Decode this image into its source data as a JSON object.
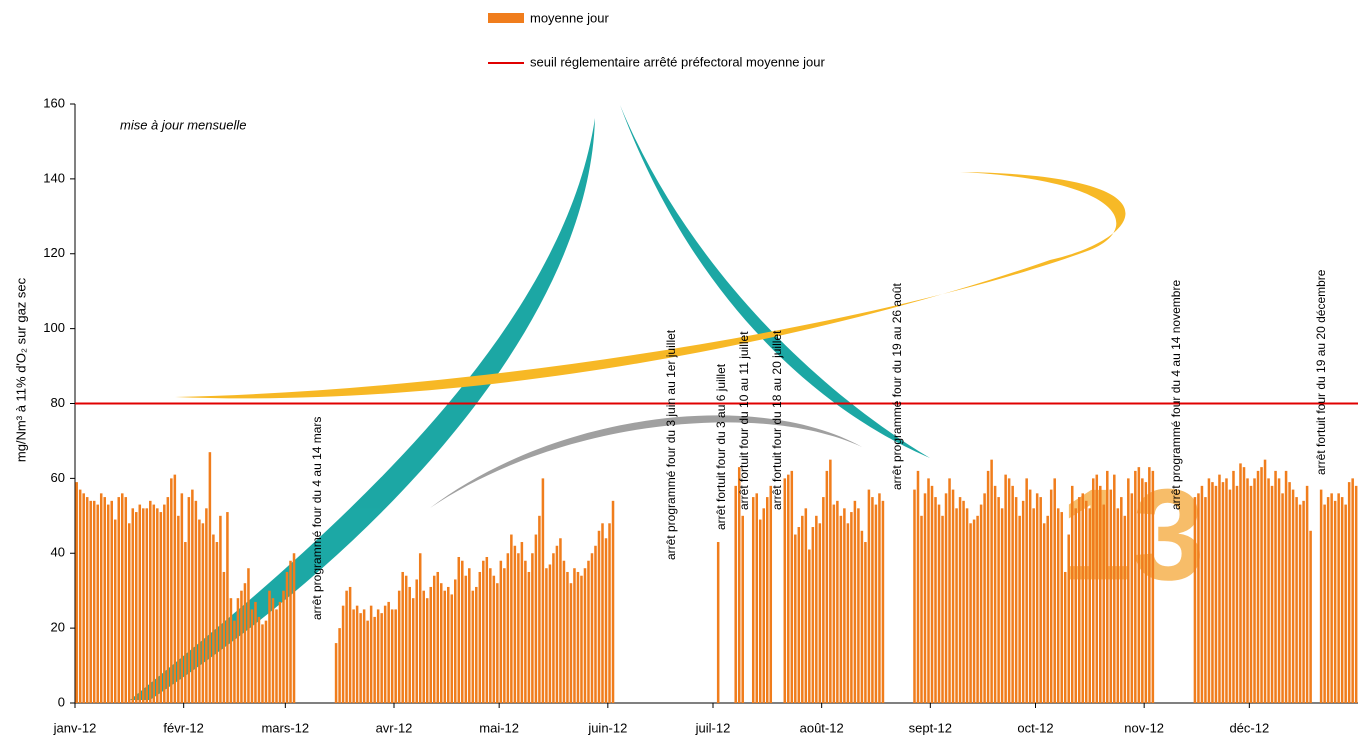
{
  "chart_data": {
    "type": "bar",
    "y_label": "mg/Nm³ à 11% d'O₂ sur gaz sec",
    "note": "mise à jour mensuelle",
    "series": [
      {
        "name": "moyenne jour",
        "color": "#f07d1c",
        "values": [
          59,
          57,
          56,
          55,
          54,
          54,
          53,
          56,
          55,
          53,
          54,
          49,
          55,
          56,
          55,
          48,
          52,
          51,
          53,
          52,
          52,
          54,
          53,
          52,
          51,
          53,
          55,
          60,
          61,
          50,
          56,
          43,
          55,
          57,
          54,
          49,
          48,
          52,
          67,
          45,
          43,
          50,
          35,
          51,
          28,
          22,
          28,
          30,
          32,
          36,
          25,
          27,
          23,
          21,
          22,
          30,
          28,
          25,
          27,
          30,
          35,
          38,
          40,
          null,
          null,
          null,
          null,
          null,
          null,
          null,
          null,
          null,
          null,
          null,
          16,
          20,
          26,
          30,
          31,
          25,
          26,
          24,
          25,
          22,
          26,
          23,
          25,
          24,
          26,
          27,
          25,
          25,
          30,
          35,
          34,
          31,
          28,
          33,
          40,
          30,
          28,
          31,
          34,
          35,
          32,
          30,
          31,
          29,
          33,
          39,
          38,
          34,
          36,
          30,
          31,
          35,
          38,
          39,
          36,
          34,
          32,
          38,
          36,
          40,
          45,
          42,
          40,
          43,
          38,
          35,
          40,
          45,
          50,
          60,
          36,
          37,
          40,
          42,
          44,
          38,
          35,
          32,
          36,
          35,
          34,
          36,
          38,
          40,
          42,
          46,
          48,
          44,
          48,
          54,
          null,
          null,
          null,
          null,
          null,
          null,
          null,
          null,
          null,
          null,
          null,
          null,
          null,
          null,
          null,
          null,
          null,
          null,
          null,
          null,
          null,
          null,
          null,
          null,
          null,
          null,
          null,
          null,
          null,
          43,
          null,
          null,
          null,
          null,
          58,
          63,
          50,
          null,
          null,
          55,
          56,
          49,
          52,
          55,
          58,
          null,
          null,
          null,
          60,
          61,
          62,
          45,
          47,
          50,
          52,
          41,
          47,
          50,
          48,
          55,
          62,
          65,
          53,
          54,
          50,
          52,
          48,
          51,
          54,
          52,
          46,
          43,
          57,
          55,
          53,
          56,
          54,
          null,
          null,
          null,
          null,
          null,
          null,
          null,
          null,
          57,
          62,
          50,
          56,
          60,
          58,
          55,
          53,
          50,
          56,
          60,
          57,
          52,
          55,
          54,
          52,
          48,
          49,
          50,
          53,
          56,
          62,
          65,
          58,
          55,
          52,
          61,
          60,
          58,
          55,
          50,
          54,
          60,
          57,
          52,
          56,
          55,
          48,
          50,
          57,
          60,
          52,
          51,
          35,
          45,
          58,
          52,
          55,
          56,
          54,
          52,
          60,
          61,
          58,
          53,
          62,
          57,
          61,
          52,
          55,
          50,
          60,
          56,
          62,
          63,
          60,
          59,
          63,
          62,
          null,
          null,
          null,
          null,
          null,
          null,
          null,
          null,
          null,
          null,
          null,
          55,
          56,
          58,
          55,
          60,
          59,
          58,
          61,
          59,
          60,
          57,
          62,
          58,
          64,
          63,
          60,
          58,
          60,
          62,
          63,
          65,
          60,
          58,
          62,
          60,
          56,
          62,
          59,
          57,
          55,
          53,
          54,
          58,
          46,
          null,
          null,
          57,
          53,
          55,
          56,
          54,
          56,
          55,
          53,
          59,
          60,
          58
        ]
      }
    ],
    "threshold": {
      "name": "seuil réglementaire arrêté préfectoral moyenne jour",
      "value": 80,
      "color": "#e00000"
    },
    "xlim": [
      0,
      366
    ],
    "xticks": [
      {
        "value": 0,
        "label": "janv-12"
      },
      {
        "value": 31,
        "label": "févr-12"
      },
      {
        "value": 60,
        "label": "mars-12"
      },
      {
        "value": 91,
        "label": "avr-12"
      },
      {
        "value": 121,
        "label": "mai-12"
      },
      {
        "value": 152,
        "label": "juin-12"
      },
      {
        "value": 182,
        "label": "juil-12"
      },
      {
        "value": 213,
        "label": "août-12"
      },
      {
        "value": 244,
        "label": "sept-12"
      },
      {
        "value": 274,
        "label": "oct-12"
      },
      {
        "value": 305,
        "label": "nov-12"
      },
      {
        "value": 335,
        "label": "déc-12"
      }
    ],
    "ylim": [
      0,
      160
    ],
    "yticks": [
      0,
      20,
      40,
      60,
      80,
      100,
      120,
      140,
      160
    ],
    "annotations": [
      "arrêt programmé four du 4 au 14 mars",
      "arrêt programmé four du 3 juin au 1er juillet",
      "arrêt fortuit four du 3 au 6 juillet",
      "arrêt fortuit four du 10 au 11  juillet",
      "arrêt fortuit four du 18 au 20 juillet",
      "arrêt programmé four du 19 au 26 août",
      "arrêt programmé four du 4 au 14 novembre",
      "arrêt fortuit four du 19 au 20 décembre"
    ]
  }
}
